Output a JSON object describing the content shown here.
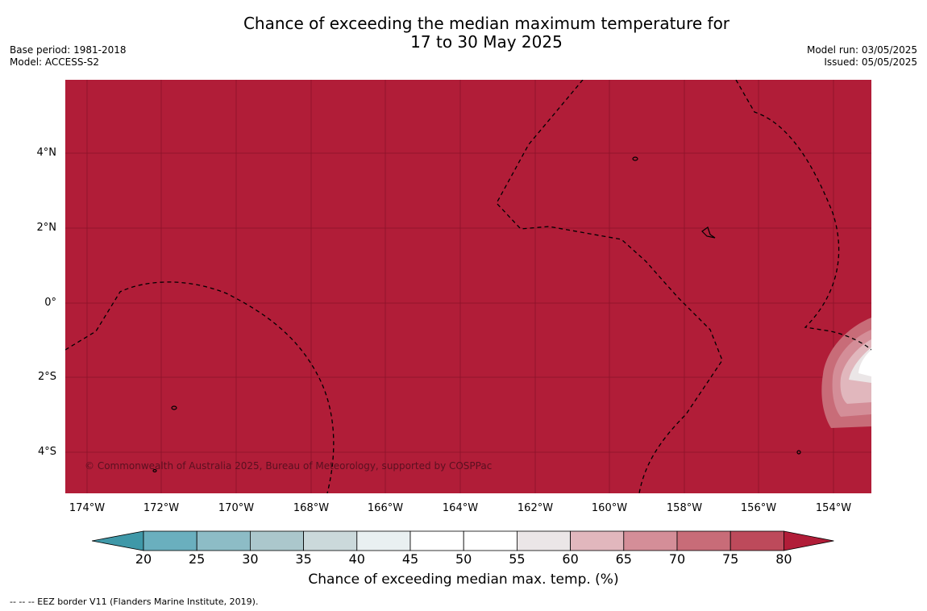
{
  "title": {
    "line1": "Chance of exceeding the median maximum temperature for",
    "line2": "17 to 30 May 2025"
  },
  "meta": {
    "base_period": "Base period: 1981-2018",
    "model": "Model: ACCESS-S2",
    "model_run": "Model run: 03/05/2025",
    "issued": "Issued: 05/05/2025"
  },
  "map": {
    "lat_labels": [
      "4°N",
      "2°N",
      "0°",
      "2°S",
      "4°S"
    ],
    "lon_labels": [
      "174°W",
      "172°W",
      "170°W",
      "168°W",
      "166°W",
      "164°W",
      "162°W",
      "160°W",
      "158°W",
      "156°W",
      "154°W"
    ],
    "copyright": "© Commonwealth of Australia 2025, Bureau of Meteorology, supported by COSPPac",
    "dominant_fill_color": "#b11d38"
  },
  "colorbar": {
    "ticks": [
      "20",
      "25",
      "30",
      "35",
      "40",
      "45",
      "50",
      "55",
      "60",
      "65",
      "70",
      "75",
      "80"
    ],
    "colors": [
      "#3f98a8",
      "#6aafbe",
      "#8dbcc6",
      "#abc7cc",
      "#cbd9db",
      "#e9f0f1",
      "#ffffff",
      "#ffffff",
      "#ebe6e7",
      "#e1b7bd",
      "#d48e98",
      "#c86c78",
      "#bd4a5b",
      "#b11d38"
    ],
    "label": "Chance of exceeding median max. temp. (%)"
  },
  "footer": "--  --  -- EEZ border V11 (Flanders Marine Institute, 2019)."
}
